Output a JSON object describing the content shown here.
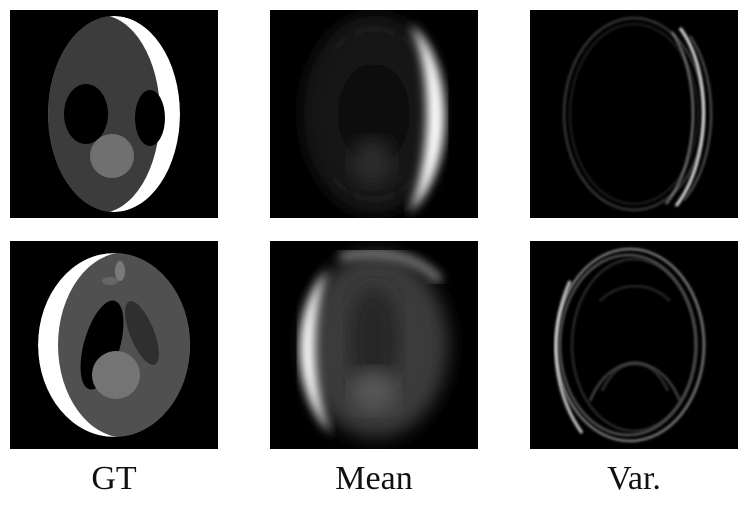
{
  "figure": {
    "columns": [
      {
        "label": "GT"
      },
      {
        "label": "Mean"
      },
      {
        "label": "Var."
      }
    ],
    "rows": 2,
    "panel_background": "#000000",
    "page_background": "#ffffff"
  }
}
